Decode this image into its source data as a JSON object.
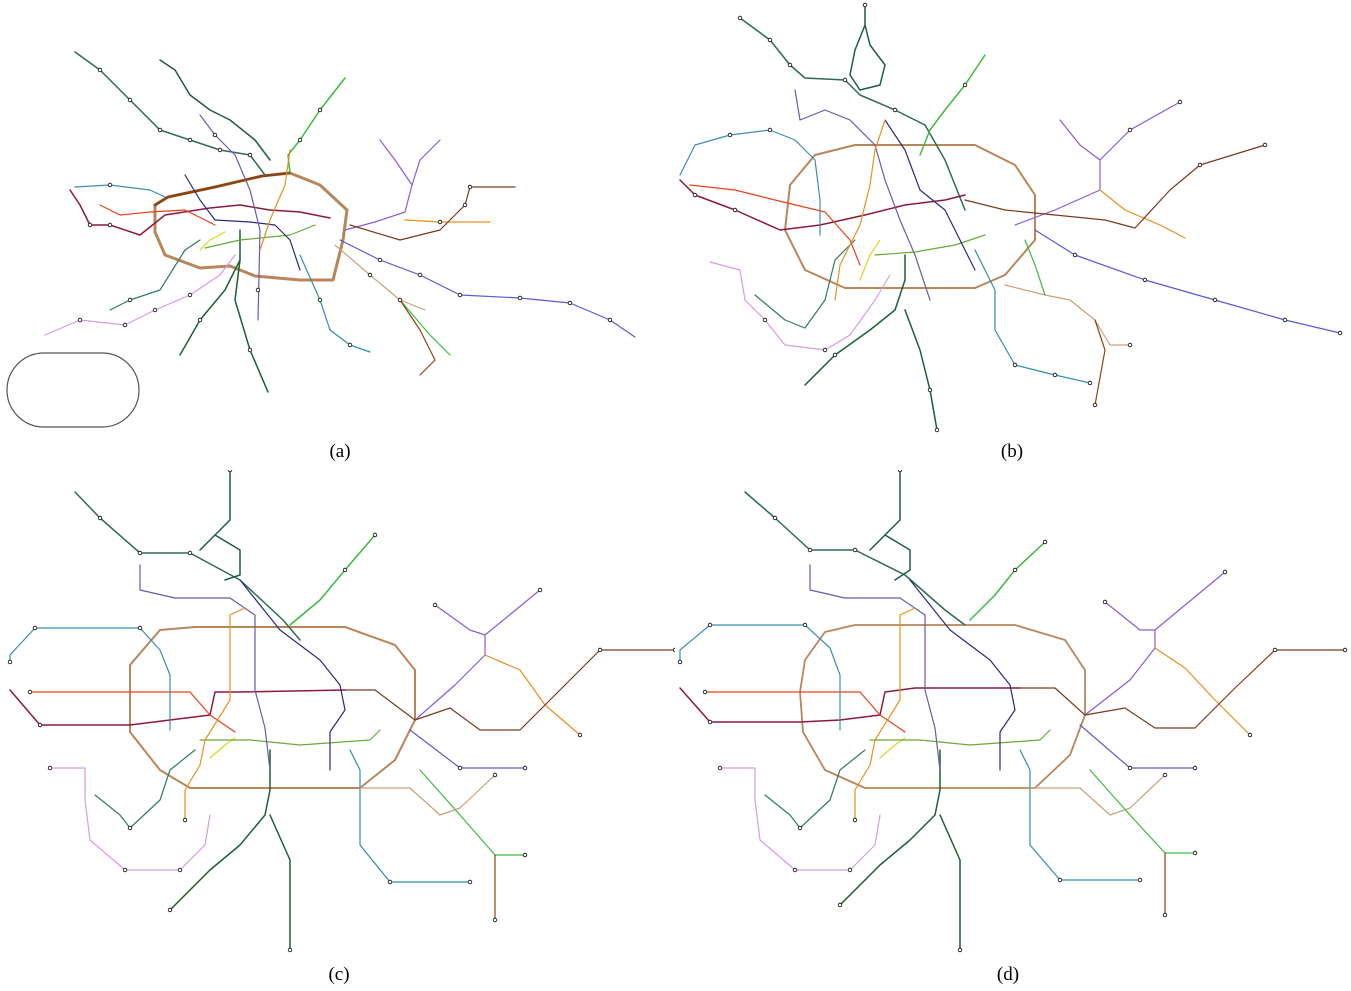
{
  "figure": {
    "captions": {
      "a": "(a)",
      "b": "(b)",
      "c": "(c)",
      "d": "(d)"
    }
  },
  "line_colors": {
    "ring": "#b8865a",
    "north_west": "#2e6b4f",
    "north": "#1f5a46",
    "north_east": "#3dbb3d",
    "east_long": "#5a5ad6",
    "east_violet": "#8a5ad6",
    "east_orange": "#e6901f",
    "east_brown": "#7a3b1e",
    "west_magenta": "#8b1a3a",
    "west_red": "#e8401c",
    "west_teal": "#3b8eb0",
    "south_pink": "#d79be0",
    "south_green": "#2e7d5a",
    "south_dark": "#1c5e36",
    "south_teal": "#2f8faa",
    "south_east_tan": "#c6a27a",
    "center_yellow": "#e6d21f",
    "center_lime": "#6aa83a",
    "center_navy": "#2a2a7a",
    "center_purple": "#6a5aa8"
  },
  "icons": {
    "station": "station-node-icon",
    "legend_frame": "rounded-rectangle-icon"
  }
}
